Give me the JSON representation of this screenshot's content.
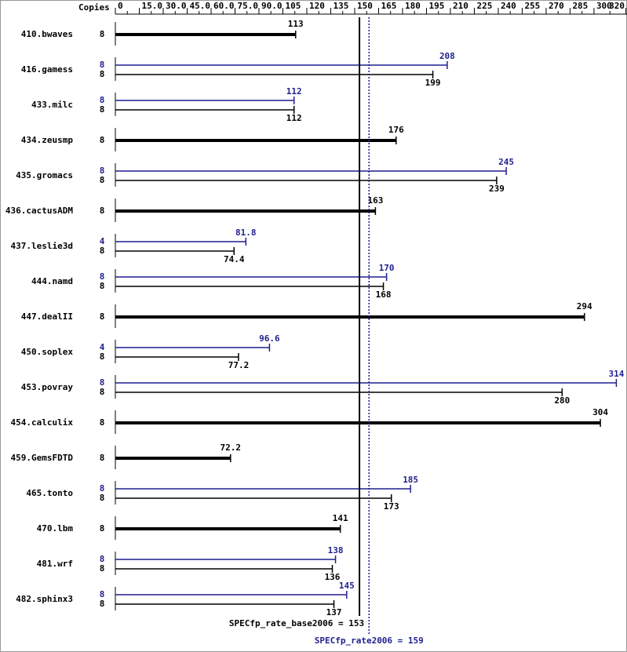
{
  "chart_data": {
    "type": "bar",
    "orientation": "horizontal",
    "copies_label": "Copies",
    "categories": [
      "410.bwaves",
      "416.gamess",
      "433.milc",
      "434.zeusmp",
      "435.gromacs",
      "436.cactusADM",
      "437.leslie3d",
      "444.namd",
      "447.dealII",
      "450.soplex",
      "453.povray",
      "454.calculix",
      "459.GemsFDTD",
      "465.tonto",
      "470.lbm",
      "481.wrf",
      "482.sphinx3"
    ],
    "series": [
      {
        "name": "SPECfp_rate2006",
        "color": "#1f1f8f",
        "values": [
          null,
          208,
          112,
          null,
          245,
          null,
          81.8,
          170,
          null,
          96.6,
          314,
          null,
          null,
          185,
          null,
          138,
          145
        ],
        "copies": [
          null,
          8,
          8,
          null,
          8,
          null,
          4,
          8,
          null,
          4,
          8,
          null,
          null,
          8,
          null,
          8,
          8
        ]
      },
      {
        "name": "SPECfp_rate_base2006",
        "color": "#000000",
        "values": [
          113,
          199,
          112,
          176,
          239,
          163,
          74.4,
          168,
          294,
          77.2,
          280,
          304,
          72.2,
          173,
          141,
          136,
          137
        ],
        "copies": [
          8,
          8,
          8,
          8,
          8,
          8,
          8,
          8,
          8,
          8,
          8,
          8,
          8,
          8,
          8,
          8,
          8
        ]
      }
    ],
    "xlim": [
      0,
      320
    ],
    "xticks": [
      0,
      {
        "value": 15,
        "label": "15.0"
      },
      {
        "value": 30,
        "label": "30.0"
      },
      {
        "value": 45,
        "label": "45.0"
      },
      {
        "value": 60,
        "label": "60.0"
      },
      {
        "value": 75,
        "label": "75.0"
      },
      {
        "value": 90,
        "label": "90.0"
      },
      105,
      120,
      135,
      150,
      165,
      180,
      195,
      210,
      225,
      240,
      255,
      270,
      285,
      300,
      320
    ],
    "reference_lines": [
      {
        "label": "SPECfp_rate_base2006 = 153",
        "value": 153,
        "color": "#000000",
        "style": "solid"
      },
      {
        "label": "SPECfp_rate2006 = 159",
        "value": 159,
        "color": "#1f1f8f",
        "style": "dotted"
      }
    ]
  }
}
